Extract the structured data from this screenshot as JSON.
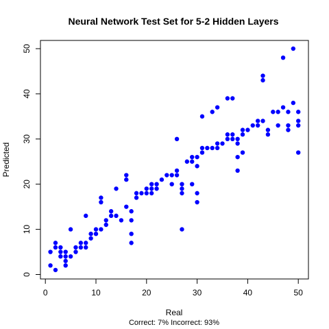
{
  "chart_data": {
    "type": "scatter",
    "title": "Neural Network Test Set for 5-2 Hidden Layers",
    "xlabel": "Real",
    "ylabel": "Predicted",
    "subtitle": "Correct: 7% Incorrect: 93%",
    "xlim": [
      0,
      51
    ],
    "ylim": [
      0,
      51
    ],
    "xticks": [
      0,
      10,
      20,
      30,
      40,
      50
    ],
    "yticks": [
      0,
      10,
      20,
      30,
      40,
      50
    ],
    "point_color": "#0000ff",
    "grid": false,
    "points": [
      [
        1,
        2
      ],
      [
        1,
        5
      ],
      [
        2,
        1
      ],
      [
        2,
        6
      ],
      [
        2,
        7
      ],
      [
        3,
        4
      ],
      [
        3,
        5
      ],
      [
        3,
        6
      ],
      [
        4,
        2
      ],
      [
        4,
        3
      ],
      [
        4,
        4
      ],
      [
        4,
        5
      ],
      [
        5,
        4
      ],
      [
        5,
        10
      ],
      [
        6,
        5
      ],
      [
        6,
        6
      ],
      [
        7,
        6
      ],
      [
        7,
        7
      ],
      [
        8,
        6
      ],
      [
        8,
        7
      ],
      [
        8,
        13
      ],
      [
        9,
        8
      ],
      [
        9,
        9
      ],
      [
        10,
        9
      ],
      [
        10,
        10
      ],
      [
        11,
        10
      ],
      [
        11,
        16
      ],
      [
        11,
        17
      ],
      [
        12,
        11
      ],
      [
        12,
        12
      ],
      [
        13,
        13
      ],
      [
        13,
        14
      ],
      [
        14,
        13
      ],
      [
        14,
        19
      ],
      [
        15,
        12
      ],
      [
        16,
        15
      ],
      [
        16,
        21
      ],
      [
        16,
        22
      ],
      [
        17,
        7
      ],
      [
        17,
        9
      ],
      [
        17,
        12
      ],
      [
        17,
        14
      ],
      [
        18,
        17
      ],
      [
        18,
        18
      ],
      [
        19,
        18
      ],
      [
        20,
        18
      ],
      [
        20,
        19
      ],
      [
        21,
        18
      ],
      [
        21,
        19
      ],
      [
        21,
        20
      ],
      [
        22,
        19
      ],
      [
        22,
        20
      ],
      [
        23,
        21
      ],
      [
        24,
        22
      ],
      [
        25,
        20
      ],
      [
        25,
        22
      ],
      [
        26,
        22
      ],
      [
        26,
        23
      ],
      [
        26,
        30
      ],
      [
        27,
        10
      ],
      [
        27,
        18
      ],
      [
        27,
        19
      ],
      [
        27,
        20
      ],
      [
        28,
        25
      ],
      [
        29,
        20
      ],
      [
        29,
        25
      ],
      [
        29,
        26
      ],
      [
        30,
        16
      ],
      [
        30,
        18
      ],
      [
        30,
        24
      ],
      [
        30,
        26
      ],
      [
        31,
        27
      ],
      [
        31,
        28
      ],
      [
        31,
        35
      ],
      [
        32,
        28
      ],
      [
        33,
        28
      ],
      [
        33,
        36
      ],
      [
        34,
        28
      ],
      [
        34,
        29
      ],
      [
        34,
        37
      ],
      [
        35,
        29
      ],
      [
        36,
        30
      ],
      [
        36,
        31
      ],
      [
        36,
        39
      ],
      [
        37,
        30
      ],
      [
        37,
        31
      ],
      [
        37,
        39
      ],
      [
        38,
        23
      ],
      [
        38,
        26
      ],
      [
        38,
        29
      ],
      [
        38,
        30
      ],
      [
        39,
        27
      ],
      [
        39,
        31
      ],
      [
        39,
        32
      ],
      [
        40,
        32
      ],
      [
        41,
        33
      ],
      [
        42,
        33
      ],
      [
        42,
        34
      ],
      [
        43,
        34
      ],
      [
        43,
        43
      ],
      [
        43,
        44
      ],
      [
        44,
        31
      ],
      [
        44,
        32
      ],
      [
        45,
        36
      ],
      [
        46,
        33
      ],
      [
        46,
        36
      ],
      [
        47,
        37
      ],
      [
        47,
        48
      ],
      [
        48,
        32
      ],
      [
        48,
        33
      ],
      [
        48,
        36
      ],
      [
        49,
        38
      ],
      [
        49,
        50
      ],
      [
        50,
        27
      ],
      [
        50,
        33
      ],
      [
        50,
        34
      ],
      [
        50,
        36
      ]
    ]
  }
}
